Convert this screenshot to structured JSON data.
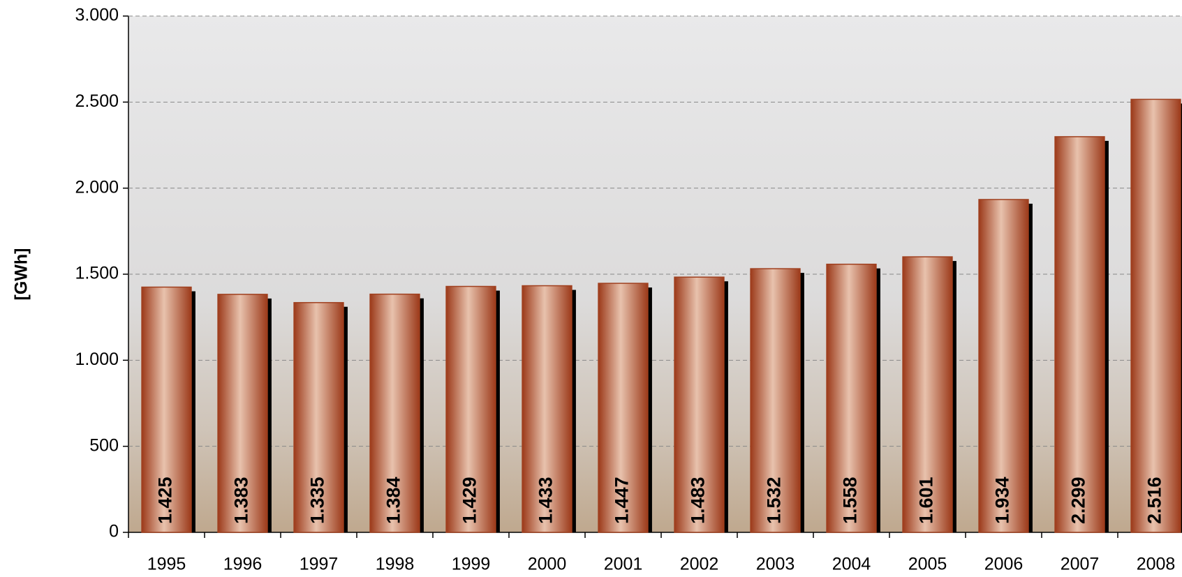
{
  "chart_data": {
    "type": "bar",
    "y_label": "[GWh]",
    "categories": [
      "1995",
      "1996",
      "1997",
      "1998",
      "1999",
      "2000",
      "2001",
      "2002",
      "2003",
      "2004",
      "2005",
      "2006",
      "2007",
      "2008"
    ],
    "values": [
      1425,
      1383,
      1335,
      1384,
      1429,
      1433,
      1447,
      1483,
      1532,
      1558,
      1601,
      1934,
      2299,
      2516
    ],
    "value_labels": [
      "1.425",
      "1.383",
      "1.335",
      "1.384",
      "1.429",
      "1.433",
      "1.447",
      "1.483",
      "1.532",
      "1.558",
      "1.601",
      "1.934",
      "2.299",
      "2.516"
    ],
    "color": "#a0401f",
    "ylim": [
      0,
      3000
    ],
    "yticks": [
      0,
      500,
      {
        "value": 1000,
        "label": "1.000"
      },
      {
        "value": 1500,
        "label": "1.500"
      },
      {
        "value": 2000,
        "label": "2.000"
      },
      {
        "value": 2500,
        "label": "2.500"
      },
      {
        "value": 3000,
        "label": "3.000"
      }
    ],
    "grid": true
  }
}
